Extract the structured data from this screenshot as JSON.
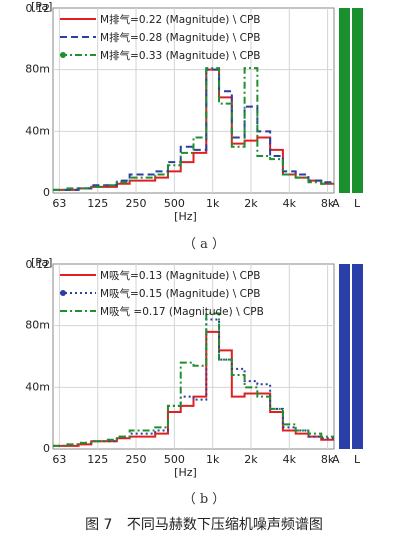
{
  "chart_data": [
    {
      "type": "line",
      "step": true,
      "ylabel": "[Pa]",
      "xlabel": "[Hz]",
      "ylim": [
        0,
        0.12
      ],
      "y_ticks": [
        {
          "v": 0,
          "label": "0"
        },
        {
          "v": 0.04,
          "label": "40m"
        },
        {
          "v": 0.08,
          "label": "80m"
        },
        {
          "v": 0.12,
          "label": "0.12"
        }
      ],
      "x_ticks": [
        {
          "band": 0,
          "label": "63"
        },
        {
          "band": 3,
          "label": "125"
        },
        {
          "band": 6,
          "label": "250"
        },
        {
          "band": 9,
          "label": "500"
        },
        {
          "band": 12,
          "label": "1k"
        },
        {
          "band": 15,
          "label": "2k"
        },
        {
          "band": 18,
          "label": "4k"
        },
        {
          "band": 21,
          "label": "8k"
        }
      ],
      "overall_labels": [
        "A",
        "L"
      ],
      "overall_color": "#1a8f2e",
      "legend_position": "top-left",
      "bands": [
        63,
        80,
        100,
        125,
        160,
        200,
        250,
        315,
        400,
        500,
        630,
        800,
        1000,
        1250,
        1600,
        2000,
        2500,
        3150,
        4000,
        5000,
        6300,
        8000
      ],
      "series": [
        {
          "name": "M排气=0.22 (Magnitude) \\ CPB",
          "color": "#e02020",
          "dash": "",
          "marker": "",
          "values": [
            0.002,
            0.002,
            0.003,
            0.004,
            0.004,
            0.006,
            0.008,
            0.008,
            0.01,
            0.014,
            0.02,
            0.026,
            0.08,
            0.062,
            0.032,
            0.034,
            0.036,
            0.028,
            0.012,
            0.01,
            0.008,
            0.006
          ]
        },
        {
          "name": "M排气=0.28 (Magnitude) \\ CPB",
          "color": "#2a3fa0",
          "dash": "7,4",
          "marker": "",
          "values": [
            0.002,
            0.002,
            0.003,
            0.005,
            0.005,
            0.008,
            0.012,
            0.012,
            0.014,
            0.02,
            0.03,
            0.028,
            0.08,
            0.066,
            0.036,
            0.056,
            0.04,
            0.024,
            0.014,
            0.012,
            0.008,
            0.007
          ]
        },
        {
          "name": "M排气=0.33 (Magnitude) \\ CPB",
          "color": "#1f8f2f",
          "dash": "7,3,2,3",
          "marker": "dot",
          "values": [
            0.002,
            0.003,
            0.003,
            0.004,
            0.005,
            0.007,
            0.01,
            0.01,
            0.012,
            0.018,
            0.026,
            0.036,
            0.081,
            0.058,
            0.03,
            0.081,
            0.024,
            0.022,
            0.012,
            0.01,
            0.007,
            0.006
          ]
        }
      ]
    },
    {
      "type": "line",
      "step": true,
      "ylabel": "[Pa]",
      "xlabel": "[Hz]",
      "ylim": [
        0,
        0.12
      ],
      "y_ticks": [
        {
          "v": 0,
          "label": "0"
        },
        {
          "v": 0.04,
          "label": "40m"
        },
        {
          "v": 0.08,
          "label": "80m"
        },
        {
          "v": 0.12,
          "label": "0.12"
        }
      ],
      "x_ticks": [
        {
          "band": 0,
          "label": "63"
        },
        {
          "band": 3,
          "label": "125"
        },
        {
          "band": 6,
          "label": "250"
        },
        {
          "band": 9,
          "label": "500"
        },
        {
          "band": 12,
          "label": "1k"
        },
        {
          "band": 15,
          "label": "2k"
        },
        {
          "band": 18,
          "label": "4k"
        },
        {
          "band": 21,
          "label": "8k"
        }
      ],
      "overall_labels": [
        "A",
        "L"
      ],
      "overall_color": "#2a3fa8",
      "legend_position": "top-left",
      "bands": [
        63,
        80,
        100,
        125,
        160,
        200,
        250,
        315,
        400,
        500,
        630,
        800,
        1000,
        1250,
        1600,
        2000,
        2500,
        3150,
        4000,
        5000,
        6300,
        8000
      ],
      "series": [
        {
          "name": "M吸气=0.13 (Magnitude) \\ CPB",
          "color": "#e02020",
          "dash": "",
          "marker": "",
          "values": [
            0.002,
            0.002,
            0.003,
            0.005,
            0.005,
            0.007,
            0.008,
            0.008,
            0.01,
            0.024,
            0.028,
            0.034,
            0.076,
            0.064,
            0.034,
            0.036,
            0.036,
            0.024,
            0.012,
            0.01,
            0.008,
            0.006
          ]
        },
        {
          "name": "M吸气=0.15 (Magnitude) \\ CPB",
          "color": "#2a3fa0",
          "dash": "2,3",
          "marker": "dot",
          "values": [
            0.002,
            0.003,
            0.004,
            0.005,
            0.005,
            0.008,
            0.01,
            0.01,
            0.012,
            0.028,
            0.034,
            0.032,
            0.084,
            0.058,
            0.052,
            0.044,
            0.042,
            0.026,
            0.014,
            0.012,
            0.008,
            0.007
          ]
        },
        {
          "name": "M吸气 =0.17 (Magnitude) \\ CPB",
          "color": "#1f8f2f",
          "dash": "7,3,2,3",
          "marker": "",
          "values": [
            0.002,
            0.003,
            0.004,
            0.005,
            0.006,
            0.008,
            0.012,
            0.012,
            0.014,
            0.028,
            0.056,
            0.054,
            0.088,
            0.058,
            0.048,
            0.04,
            0.034,
            0.026,
            0.016,
            0.012,
            0.01,
            0.008
          ]
        }
      ]
    }
  ],
  "captions": [
    "（ a ）",
    "（ b ）"
  ],
  "figure_caption": {
    "number": "图 7",
    "title": "不同马赫数下压缩机噪声频谱图"
  }
}
